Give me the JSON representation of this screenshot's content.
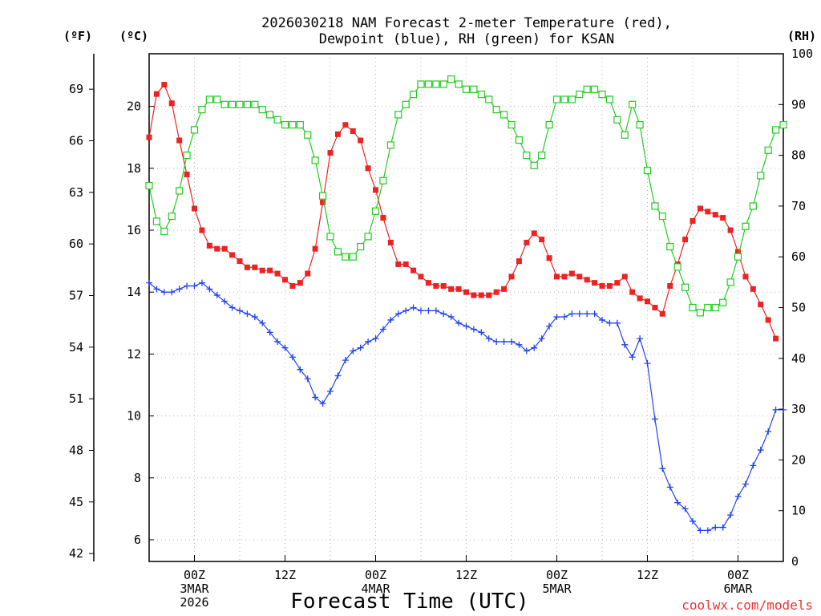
{
  "chart_data": {
    "type": "line",
    "title_line1": "2026030218 NAM Forecast 2-meter Temperature (red),",
    "title_line2": "Dewpoint (blue), RH (green) for KSAN",
    "xlabel": "Forecast Time (UTC)",
    "credit": "coolwx.com/models",
    "unit_f": "(ºF)",
    "unit_c": "(ºC)",
    "unit_rh": "(RH)",
    "xlim": [
      -9,
      75
    ],
    "c_lim": [
      5.3,
      21.7
    ],
    "rh_lim": [
      0,
      100
    ],
    "c_ticks": [
      "6",
      "8",
      "10",
      "12",
      "14",
      "16",
      "18",
      "20"
    ],
    "c_tick_values": [
      6,
      8,
      10,
      12,
      14,
      16,
      18,
      20
    ],
    "f_ticks": [
      "42",
      "45",
      "48",
      "51",
      "54",
      "57",
      "60",
      "63",
      "66",
      "69"
    ],
    "f_tick_values": [
      42,
      45,
      48,
      51,
      54,
      57,
      60,
      63,
      66,
      69
    ],
    "rh_ticks": [
      "0",
      "10",
      "20",
      "30",
      "40",
      "50",
      "60",
      "70",
      "80",
      "90",
      "100"
    ],
    "rh_tick_values": [
      0,
      10,
      20,
      30,
      40,
      50,
      60,
      70,
      80,
      90,
      100
    ],
    "x_ticks": [
      {
        "hour": -3,
        "labels": [
          "00Z",
          "3MAR",
          "2026"
        ]
      },
      {
        "hour": 9,
        "labels": [
          "12Z"
        ]
      },
      {
        "hour": 21,
        "labels": [
          "00Z",
          "4MAR"
        ]
      },
      {
        "hour": 33,
        "labels": [
          "12Z"
        ]
      },
      {
        "hour": 45,
        "labels": [
          "00Z",
          "5MAR"
        ]
      },
      {
        "hour": 57,
        "labels": [
          "12Z"
        ]
      },
      {
        "hour": 69,
        "labels": [
          "00Z",
          "6MAR"
        ]
      }
    ],
    "series": [
      {
        "name": "Temperature",
        "color": "#ee2222",
        "marker": "square-filled",
        "axis": "c",
        "values": [
          [
            -9,
            19.0
          ],
          [
            -8,
            20.4
          ],
          [
            -7,
            20.7
          ],
          [
            -6,
            20.1
          ],
          [
            -5,
            18.9
          ],
          [
            -4,
            17.8
          ],
          [
            -3,
            16.7
          ],
          [
            -2,
            16.0
          ],
          [
            -1,
            15.5
          ],
          [
            0,
            15.4
          ],
          [
            1,
            15.4
          ],
          [
            2,
            15.2
          ],
          [
            3,
            15.0
          ],
          [
            4,
            14.8
          ],
          [
            5,
            14.8
          ],
          [
            6,
            14.7
          ],
          [
            7,
            14.7
          ],
          [
            8,
            14.6
          ],
          [
            9,
            14.4
          ],
          [
            10,
            14.2
          ],
          [
            11,
            14.3
          ],
          [
            12,
            14.6
          ],
          [
            13,
            15.4
          ],
          [
            14,
            16.9
          ],
          [
            15,
            18.5
          ],
          [
            16,
            19.1
          ],
          [
            17,
            19.4
          ],
          [
            18,
            19.2
          ],
          [
            19,
            18.9
          ],
          [
            20,
            18.0
          ],
          [
            21,
            17.3
          ],
          [
            22,
            16.4
          ],
          [
            23,
            15.6
          ],
          [
            24,
            14.9
          ],
          [
            25,
            14.9
          ],
          [
            26,
            14.7
          ],
          [
            27,
            14.5
          ],
          [
            28,
            14.3
          ],
          [
            29,
            14.2
          ],
          [
            30,
            14.2
          ],
          [
            31,
            14.1
          ],
          [
            32,
            14.1
          ],
          [
            33,
            14.0
          ],
          [
            34,
            13.9
          ],
          [
            35,
            13.9
          ],
          [
            36,
            13.9
          ],
          [
            37,
            14.0
          ],
          [
            38,
            14.1
          ],
          [
            39,
            14.5
          ],
          [
            40,
            15.0
          ],
          [
            41,
            15.6
          ],
          [
            42,
            15.9
          ],
          [
            43,
            15.7
          ],
          [
            44,
            15.1
          ],
          [
            45,
            14.5
          ],
          [
            46,
            14.5
          ],
          [
            47,
            14.6
          ],
          [
            48,
            14.5
          ],
          [
            49,
            14.4
          ],
          [
            50,
            14.3
          ],
          [
            51,
            14.2
          ],
          [
            52,
            14.2
          ],
          [
            53,
            14.3
          ],
          [
            54,
            14.5
          ],
          [
            55,
            14.0
          ],
          [
            56,
            13.8
          ],
          [
            57,
            13.7
          ],
          [
            58,
            13.5
          ],
          [
            59,
            13.3
          ],
          [
            60,
            14.2
          ],
          [
            61,
            14.9
          ],
          [
            62,
            15.7
          ],
          [
            63,
            16.3
          ],
          [
            64,
            16.7
          ],
          [
            65,
            16.6
          ],
          [
            66,
            16.5
          ],
          [
            67,
            16.4
          ],
          [
            68,
            16.0
          ],
          [
            69,
            15.3
          ],
          [
            70,
            14.5
          ],
          [
            71,
            14.1
          ],
          [
            72,
            13.6
          ],
          [
            73,
            13.1
          ],
          [
            74,
            12.5
          ]
        ]
      },
      {
        "name": "Dewpoint",
        "color": "#2244ee",
        "marker": "plus",
        "axis": "c",
        "values": [
          [
            -9,
            14.3
          ],
          [
            -8,
            14.1
          ],
          [
            -7,
            14.0
          ],
          [
            -6,
            14.0
          ],
          [
            -5,
            14.1
          ],
          [
            -4,
            14.2
          ],
          [
            -3,
            14.2
          ],
          [
            -2,
            14.3
          ],
          [
            -1,
            14.1
          ],
          [
            0,
            13.9
          ],
          [
            1,
            13.7
          ],
          [
            2,
            13.5
          ],
          [
            3,
            13.4
          ],
          [
            4,
            13.3
          ],
          [
            5,
            13.2
          ],
          [
            6,
            13.0
          ],
          [
            7,
            12.7
          ],
          [
            8,
            12.4
          ],
          [
            9,
            12.2
          ],
          [
            10,
            11.9
          ],
          [
            11,
            11.5
          ],
          [
            12,
            11.2
          ],
          [
            13,
            10.6
          ],
          [
            14,
            10.4
          ],
          [
            15,
            10.8
          ],
          [
            16,
            11.3
          ],
          [
            17,
            11.8
          ],
          [
            18,
            12.1
          ],
          [
            19,
            12.2
          ],
          [
            20,
            12.4
          ],
          [
            21,
            12.5
          ],
          [
            22,
            12.8
          ],
          [
            23,
            13.1
          ],
          [
            24,
            13.3
          ],
          [
            25,
            13.4
          ],
          [
            26,
            13.5
          ],
          [
            27,
            13.4
          ],
          [
            28,
            13.4
          ],
          [
            29,
            13.4
          ],
          [
            30,
            13.3
          ],
          [
            31,
            13.2
          ],
          [
            32,
            13.0
          ],
          [
            33,
            12.9
          ],
          [
            34,
            12.8
          ],
          [
            35,
            12.7
          ],
          [
            36,
            12.5
          ],
          [
            37,
            12.4
          ],
          [
            38,
            12.4
          ],
          [
            39,
            12.4
          ],
          [
            40,
            12.3
          ],
          [
            41,
            12.1
          ],
          [
            42,
            12.2
          ],
          [
            43,
            12.5
          ],
          [
            44,
            12.9
          ],
          [
            45,
            13.2
          ],
          [
            46,
            13.2
          ],
          [
            47,
            13.3
          ],
          [
            48,
            13.3
          ],
          [
            49,
            13.3
          ],
          [
            50,
            13.3
          ],
          [
            51,
            13.1
          ],
          [
            52,
            13.0
          ],
          [
            53,
            13.0
          ],
          [
            54,
            12.3
          ],
          [
            55,
            11.9
          ],
          [
            56,
            12.5
          ],
          [
            57,
            11.7
          ],
          [
            58,
            9.9
          ],
          [
            59,
            8.3
          ],
          [
            60,
            7.7
          ],
          [
            61,
            7.2
          ],
          [
            62,
            7.0
          ],
          [
            63,
            6.6
          ],
          [
            64,
            6.3
          ],
          [
            65,
            6.3
          ],
          [
            66,
            6.4
          ],
          [
            67,
            6.4
          ],
          [
            68,
            6.8
          ],
          [
            69,
            7.4
          ],
          [
            70,
            7.8
          ],
          [
            71,
            8.4
          ],
          [
            72,
            8.9
          ],
          [
            73,
            9.5
          ],
          [
            74,
            10.2
          ],
          [
            75,
            10.2
          ]
        ]
      },
      {
        "name": "RH",
        "color": "#22cc22",
        "marker": "square-open",
        "axis": "rh",
        "values": [
          [
            -9,
            74
          ],
          [
            -8,
            67
          ],
          [
            -7,
            65
          ],
          [
            -6,
            68
          ],
          [
            -5,
            73
          ],
          [
            -4,
            80
          ],
          [
            -3,
            85
          ],
          [
            -2,
            89
          ],
          [
            -1,
            91
          ],
          [
            0,
            91
          ],
          [
            1,
            90
          ],
          [
            2,
            90
          ],
          [
            3,
            90
          ],
          [
            4,
            90
          ],
          [
            5,
            90
          ],
          [
            6,
            89
          ],
          [
            7,
            88
          ],
          [
            8,
            87
          ],
          [
            9,
            86
          ],
          [
            10,
            86
          ],
          [
            11,
            86
          ],
          [
            12,
            84
          ],
          [
            13,
            79
          ],
          [
            14,
            72
          ],
          [
            15,
            64
          ],
          [
            16,
            61
          ],
          [
            17,
            60
          ],
          [
            18,
            60
          ],
          [
            19,
            62
          ],
          [
            20,
            64
          ],
          [
            21,
            69
          ],
          [
            22,
            75
          ],
          [
            23,
            82
          ],
          [
            24,
            88
          ],
          [
            25,
            90
          ],
          [
            26,
            92
          ],
          [
            27,
            94
          ],
          [
            28,
            94
          ],
          [
            29,
            94
          ],
          [
            30,
            94
          ],
          [
            31,
            95
          ],
          [
            32,
            94
          ],
          [
            33,
            93
          ],
          [
            34,
            93
          ],
          [
            35,
            92
          ],
          [
            36,
            91
          ],
          [
            37,
            89
          ],
          [
            38,
            88
          ],
          [
            39,
            86
          ],
          [
            40,
            83
          ],
          [
            41,
            80
          ],
          [
            42,
            78
          ],
          [
            43,
            80
          ],
          [
            44,
            86
          ],
          [
            45,
            91
          ],
          [
            46,
            91
          ],
          [
            47,
            91
          ],
          [
            48,
            92
          ],
          [
            49,
            93
          ],
          [
            50,
            93
          ],
          [
            51,
            92
          ],
          [
            52,
            91
          ],
          [
            53,
            87
          ],
          [
            54,
            84
          ],
          [
            55,
            90
          ],
          [
            56,
            86
          ],
          [
            57,
            77
          ],
          [
            58,
            70
          ],
          [
            59,
            68
          ],
          [
            60,
            62
          ],
          [
            61,
            58
          ],
          [
            62,
            54
          ],
          [
            63,
            50
          ],
          [
            64,
            49
          ],
          [
            65,
            50
          ],
          [
            66,
            50
          ],
          [
            67,
            51
          ],
          [
            68,
            55
          ],
          [
            69,
            60
          ],
          [
            70,
            66
          ],
          [
            71,
            70
          ],
          [
            72,
            76
          ],
          [
            73,
            81
          ],
          [
            74,
            85
          ],
          [
            75,
            86
          ]
        ]
      }
    ]
  }
}
